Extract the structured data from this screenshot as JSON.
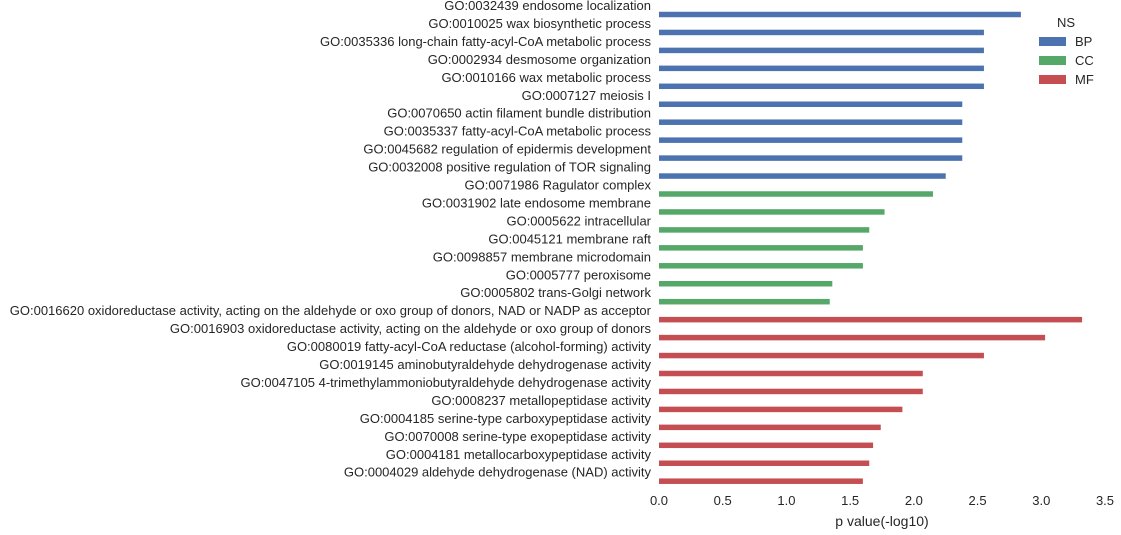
{
  "chart_data": {
    "type": "bar",
    "orientation": "horizontal",
    "xlabel": "p value(-log10)",
    "ylabel": "",
    "xlim": [
      0,
      3.5
    ],
    "xticks": [
      "0.0",
      "0.5",
      "1.0",
      "1.5",
      "2.0",
      "2.5",
      "3.0",
      "3.5"
    ],
    "grid": false,
    "legend": {
      "title": "NS",
      "placement": "top-right",
      "entries": [
        {
          "name": "BP",
          "color": "#4c72b0"
        },
        {
          "name": "CC",
          "color": "#55a868"
        },
        {
          "name": "MF",
          "color": "#c44e52"
        }
      ]
    },
    "bars": [
      {
        "label": "GO:0032439 endosome localization",
        "value": 2.84,
        "ns": "BP"
      },
      {
        "label": "GO:0010025 wax biosynthetic process",
        "value": 2.55,
        "ns": "BP"
      },
      {
        "label": "GO:0035336 long-chain fatty-acyl-CoA metabolic process",
        "value": 2.55,
        "ns": "BP"
      },
      {
        "label": "GO:0002934 desmosome organization",
        "value": 2.55,
        "ns": "BP"
      },
      {
        "label": "GO:0010166 wax metabolic process",
        "value": 2.55,
        "ns": "BP"
      },
      {
        "label": "GO:0007127 meiosis I",
        "value": 2.38,
        "ns": "BP"
      },
      {
        "label": "GO:0070650 actin filament bundle distribution",
        "value": 2.38,
        "ns": "BP"
      },
      {
        "label": "GO:0035337 fatty-acyl-CoA metabolic process",
        "value": 2.38,
        "ns": "BP"
      },
      {
        "label": "GO:0045682 regulation of epidermis development",
        "value": 2.38,
        "ns": "BP"
      },
      {
        "label": "GO:0032008 positive regulation of TOR signaling",
        "value": 2.25,
        "ns": "BP"
      },
      {
        "label": "GO:0071986 Ragulator complex",
        "value": 2.15,
        "ns": "CC"
      },
      {
        "label": "GO:0031902 late endosome membrane",
        "value": 1.77,
        "ns": "CC"
      },
      {
        "label": "GO:0005622 intracellular",
        "value": 1.65,
        "ns": "CC"
      },
      {
        "label": "GO:0045121 membrane raft",
        "value": 1.6,
        "ns": "CC"
      },
      {
        "label": "GO:0098857 membrane microdomain",
        "value": 1.6,
        "ns": "CC"
      },
      {
        "label": "GO:0005777 peroxisome",
        "value": 1.36,
        "ns": "CC"
      },
      {
        "label": "GO:0005802 trans-Golgi network",
        "value": 1.34,
        "ns": "CC"
      },
      {
        "label": "GO:0016620 oxidoreductase activity, acting on the aldehyde or oxo group of donors, NAD or NADP as acceptor",
        "value": 3.32,
        "ns": "MF"
      },
      {
        "label": "GO:0016903 oxidoreductase activity, acting on the aldehyde or oxo group of donors",
        "value": 3.03,
        "ns": "MF"
      },
      {
        "label": "GO:0080019 fatty-acyl-CoA reductase (alcohol-forming) activity",
        "value": 2.55,
        "ns": "MF"
      },
      {
        "label": "GO:0019145 aminobutyraldehyde dehydrogenase activity",
        "value": 2.07,
        "ns": "MF"
      },
      {
        "label": "GO:0047105 4-trimethylammoniobutyraldehyde dehydrogenase activity",
        "value": 2.07,
        "ns": "MF"
      },
      {
        "label": "GO:0008237 metallopeptidase activity",
        "value": 1.91,
        "ns": "MF"
      },
      {
        "label": "GO:0004185 serine-type carboxypeptidase activity",
        "value": 1.74,
        "ns": "MF"
      },
      {
        "label": "GO:0070008 serine-type exopeptidase activity",
        "value": 1.68,
        "ns": "MF"
      },
      {
        "label": "GO:0004181 metallocarboxypeptidase activity",
        "value": 1.65,
        "ns": "MF"
      },
      {
        "label": "GO:0004029 aldehyde dehydrogenase (NAD) activity",
        "value": 1.6,
        "ns": "MF"
      }
    ]
  }
}
